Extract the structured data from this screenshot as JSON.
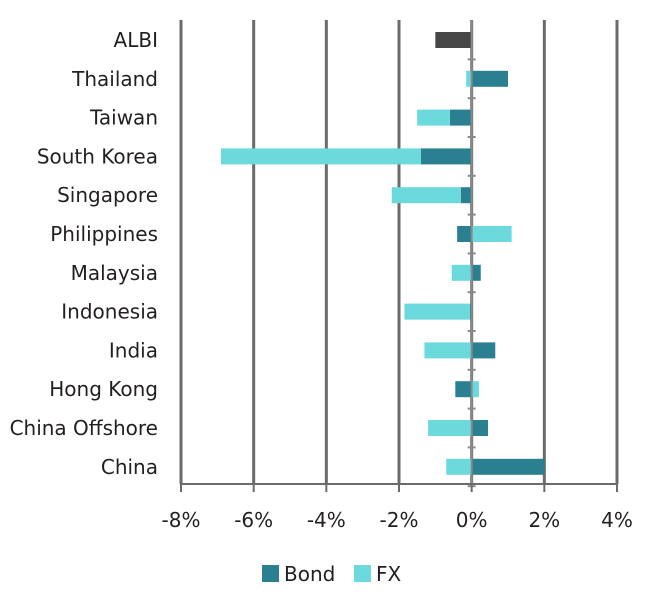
{
  "chart_data": {
    "type": "bar",
    "orientation": "horizontal",
    "stacked": true,
    "categories": [
      "ALBI",
      "Thailand",
      "Taiwan",
      "South Korea",
      "Singapore",
      "Philippines",
      "Malaysia",
      "Indonesia",
      "India",
      "Hong Kong",
      "China Offshore",
      "China"
    ],
    "series": [
      {
        "name": "Bond",
        "color": "#2a7f90",
        "values": [
          -1.0,
          1.0,
          -0.6,
          -1.4,
          -0.3,
          -0.4,
          0.25,
          -0.05,
          0.65,
          -0.45,
          0.45,
          2.0
        ]
      },
      {
        "name": "FX",
        "color": "#6cd9dc",
        "values": [
          0,
          -0.15,
          -0.9,
          -5.5,
          -1.9,
          1.1,
          -0.55,
          -1.8,
          -1.3,
          0.2,
          -1.2,
          -0.7
        ]
      }
    ],
    "total_bar": {
      "category": "ALBI",
      "color": "#474747"
    },
    "x_ticks": [
      -8,
      -6,
      -4,
      -2,
      0,
      2,
      4
    ],
    "x_tick_labels": [
      "-8%",
      "-6%",
      "-4%",
      "-2%",
      "0%",
      "2%",
      "4%"
    ],
    "xlim": [
      -8,
      4
    ],
    "grid": "vertical",
    "gridline_color": "#6b6b6b",
    "legend_position": "bottom-center"
  }
}
